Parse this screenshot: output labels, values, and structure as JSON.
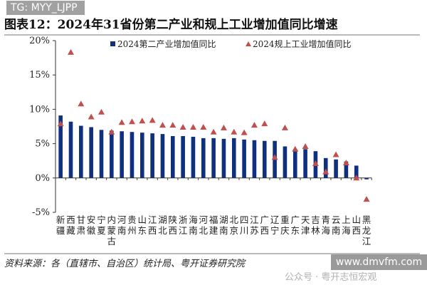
{
  "title": "图表12：2024年31省份第二产业和规上工业增加值同比增速",
  "source": "资料来源：各（直辖市、自治区）统计局、粤开证券研究院",
  "watermarks": {
    "top": "TG: MYY_LJPP",
    "wechat": "公众号 · 粤开志恒宏观",
    "site": "www.dmvfm.com"
  },
  "colors": {
    "bar": "#0f2f7f",
    "marker": "#c0504d"
  },
  "chart_data": {
    "type": "bar",
    "categories": [
      "新疆",
      "西藏",
      "甘肃",
      "安徽",
      "宁夏",
      "内蒙古",
      "河南",
      "贵州",
      "山东",
      "江西",
      "湖北",
      "陕西",
      "浙江",
      "海南",
      "河北",
      "福建",
      "湖南",
      "北京",
      "四川",
      "江苏",
      "广西",
      "辽宁",
      "重庆",
      "广东",
      "天津",
      "吉林",
      "青海",
      "云南",
      "上海",
      "山西",
      "黑龙江"
    ],
    "series": [
      {
        "name": "2024第二产业增加值同比",
        "type": "bar",
        "values": [
          9.1,
          8.2,
          7.6,
          7.4,
          7.0,
          6.9,
          6.8,
          6.7,
          6.6,
          6.5,
          6.4,
          6.1,
          6.1,
          6.0,
          5.8,
          5.8,
          5.7,
          5.8,
          5.6,
          5.5,
          5.4,
          5.4,
          4.6,
          4.2,
          4.2,
          3.9,
          2.9,
          2.7,
          2.4,
          1.8,
          -0.2
        ]
      },
      {
        "name": "2024规上工业增加值同比",
        "type": "scatter",
        "marker": "triangle",
        "values": [
          7.9,
          18.3,
          10.8,
          8.9,
          9.6,
          6.7,
          8.1,
          8.2,
          8.3,
          8.4,
          7.7,
          7.7,
          7.4,
          7.4,
          7.4,
          6.7,
          7.3,
          6.7,
          6.6,
          7.7,
          7.9,
          3.0,
          7.3,
          4.2,
          4.6,
          2.1,
          0.9,
          3.4,
          2.2,
          0.0,
          -3.1
        ]
      }
    ],
    "yticks": [
      "-5%",
      "0%",
      "5%",
      "10%",
      "15%",
      "20%"
    ],
    "ylim": [
      -5,
      20
    ],
    "grid": false,
    "legend": "top"
  }
}
